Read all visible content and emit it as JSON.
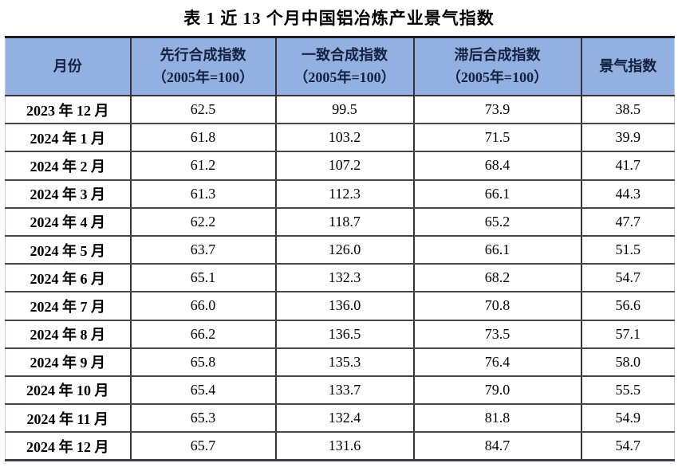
{
  "title": "表 1 近 13 个月中国铝冶炼产业景气指数",
  "colors": {
    "header_bg": "#92b1e0",
    "header_text": "#13223f",
    "body_text": "#000000",
    "grid_line": "#33343c",
    "top_rule": "#1c1d26"
  },
  "table": {
    "columns": [
      {
        "label": "月份",
        "sub": ""
      },
      {
        "label": "先行合成指数",
        "sub": "（2005年=100）"
      },
      {
        "label": "一致合成指数",
        "sub": "（2005年=100）"
      },
      {
        "label": "滞后合成指数",
        "sub": "（2005年=100）"
      },
      {
        "label": "景气指数",
        "sub": ""
      }
    ],
    "rows": [
      {
        "month": "2023 年 12 月",
        "leading": "62.5",
        "coincident": "99.5",
        "lagging": "73.9",
        "prosperity": "38.5"
      },
      {
        "month": "2024 年 1 月",
        "leading": "61.8",
        "coincident": "103.2",
        "lagging": "71.5",
        "prosperity": "39.9"
      },
      {
        "month": "2024 年 2 月",
        "leading": "61.2",
        "coincident": "107.2",
        "lagging": "68.4",
        "prosperity": "41.7"
      },
      {
        "month": "2024 年 3 月",
        "leading": "61.3",
        "coincident": "112.3",
        "lagging": "66.1",
        "prosperity": "44.3"
      },
      {
        "month": "2024 年 4 月",
        "leading": "62.2",
        "coincident": "118.7",
        "lagging": "65.2",
        "prosperity": "47.7"
      },
      {
        "month": "2024 年 5 月",
        "leading": "63.7",
        "coincident": "126.0",
        "lagging": "66.1",
        "prosperity": "51.5"
      },
      {
        "month": "2024 年 6 月",
        "leading": "65.1",
        "coincident": "132.3",
        "lagging": "68.2",
        "prosperity": "54.7"
      },
      {
        "month": "2024 年 7 月",
        "leading": "66.0",
        "coincident": "136.0",
        "lagging": "70.8",
        "prosperity": "56.6"
      },
      {
        "month": "2024 年 8 月",
        "leading": "66.2",
        "coincident": "136.5",
        "lagging": "73.5",
        "prosperity": "57.1"
      },
      {
        "month": "2024 年 9 月",
        "leading": "65.8",
        "coincident": "135.3",
        "lagging": "76.4",
        "prosperity": "58.0"
      },
      {
        "month": "2024 年 10 月",
        "leading": "65.4",
        "coincident": "133.7",
        "lagging": "79.0",
        "prosperity": "55.5"
      },
      {
        "month": "2024 年 11 月",
        "leading": "65.3",
        "coincident": "132.4",
        "lagging": "81.8",
        "prosperity": "54.9"
      },
      {
        "month": "2024 年 12 月",
        "leading": "65.7",
        "coincident": "131.6",
        "lagging": "84.7",
        "prosperity": "54.7"
      }
    ]
  },
  "chart_data": {
    "type": "table",
    "title": "表 1 近 13 个月中国铝冶炼产业景气指数",
    "columns": [
      "月份",
      "先行合成指数（2005年=100）",
      "一致合成指数（2005年=100）",
      "滞后合成指数（2005年=100）",
      "景气指数"
    ],
    "categories": [
      "2023年12月",
      "2024年1月",
      "2024年2月",
      "2024年3月",
      "2024年4月",
      "2024年5月",
      "2024年6月",
      "2024年7月",
      "2024年8月",
      "2024年9月",
      "2024年10月",
      "2024年11月",
      "2024年12月"
    ],
    "series": [
      {
        "name": "先行合成指数（2005年=100）",
        "values": [
          62.5,
          61.8,
          61.2,
          61.3,
          62.2,
          63.7,
          65.1,
          66.0,
          66.2,
          65.8,
          65.4,
          65.3,
          65.7
        ]
      },
      {
        "name": "一致合成指数（2005年=100）",
        "values": [
          99.5,
          103.2,
          107.2,
          112.3,
          118.7,
          126.0,
          132.3,
          136.0,
          136.5,
          135.3,
          133.7,
          132.4,
          131.6
        ]
      },
      {
        "name": "滞后合成指数（2005年=100）",
        "values": [
          73.9,
          71.5,
          68.4,
          66.1,
          65.2,
          66.1,
          68.2,
          70.8,
          73.5,
          76.4,
          79.0,
          81.8,
          84.7
        ]
      },
      {
        "name": "景气指数",
        "values": [
          38.5,
          39.9,
          41.7,
          44.3,
          47.7,
          51.5,
          54.7,
          56.6,
          57.1,
          58.0,
          55.5,
          54.9,
          54.7
        ]
      }
    ]
  }
}
